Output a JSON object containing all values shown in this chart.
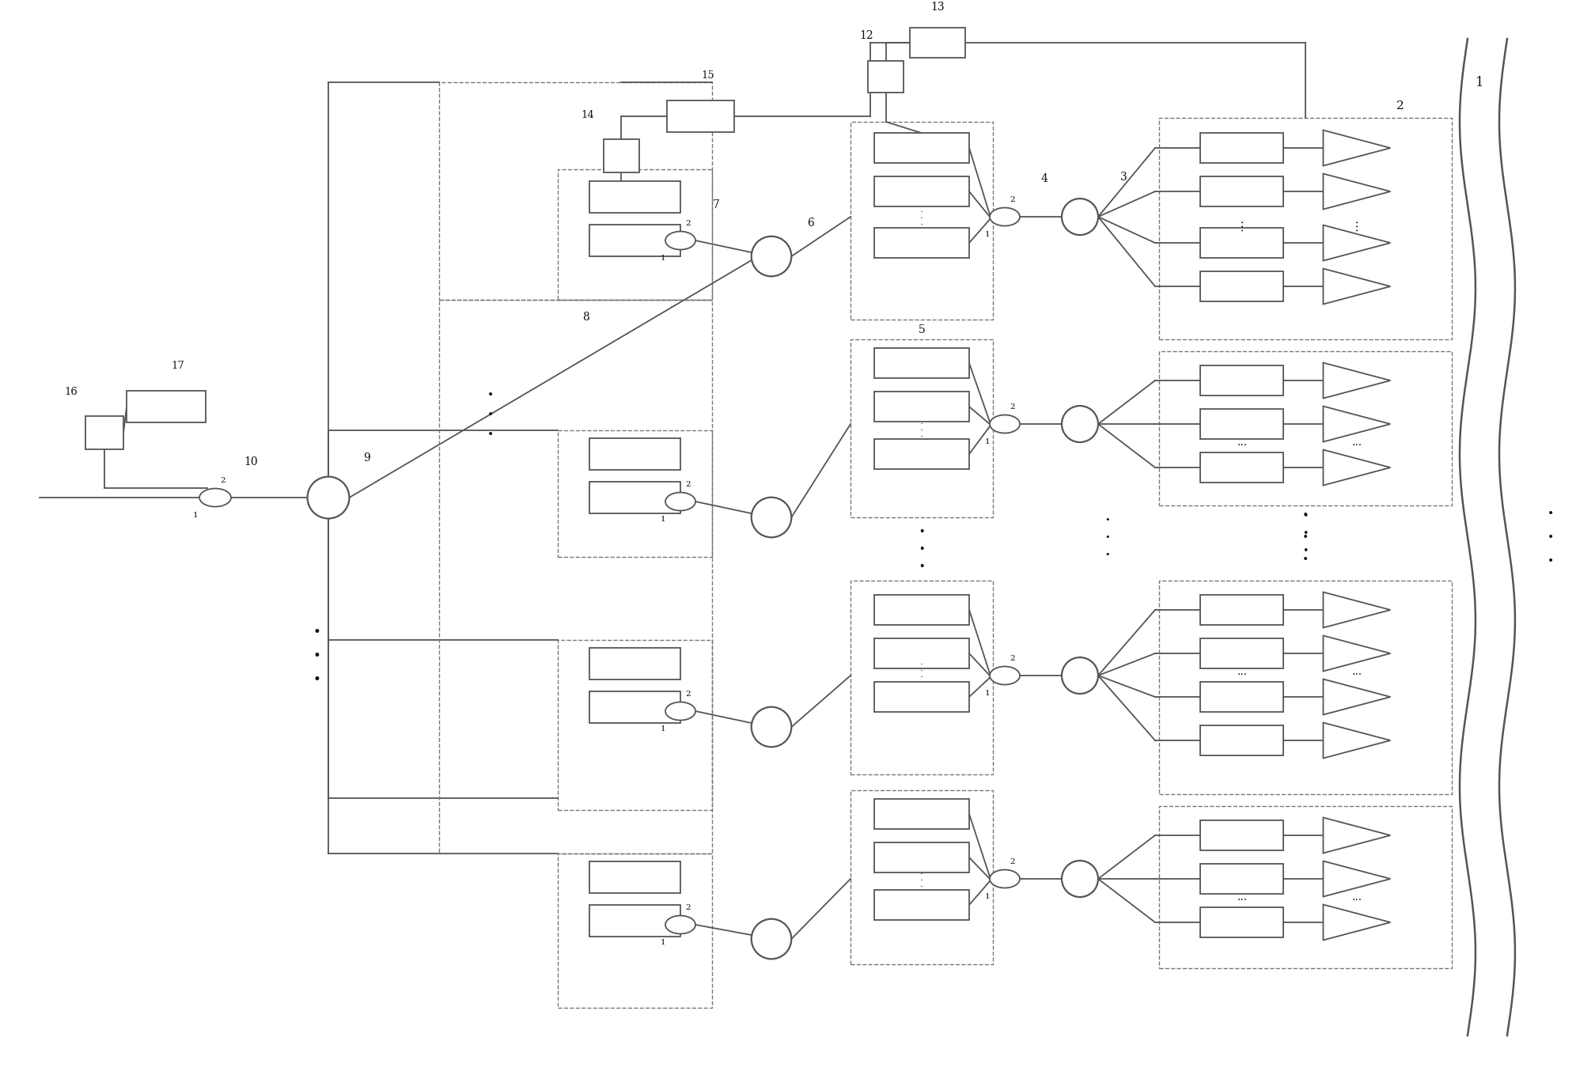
{
  "bg_color": "#ffffff",
  "lc": "#555555",
  "bc": "#ffffff",
  "be": "#555555",
  "dc": "#777777",
  "lblc": "#111111",
  "fw": 20.16,
  "fh": 13.59,
  "lw": 1.3,
  "lw2": 1.6
}
